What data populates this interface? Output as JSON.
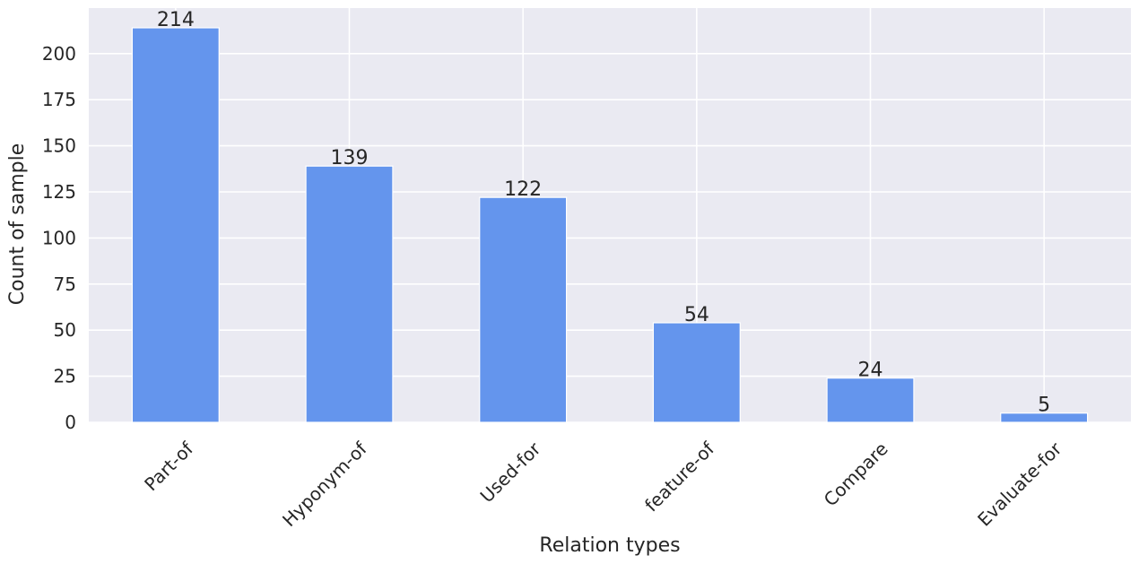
{
  "chart_data": {
    "type": "bar",
    "title": "",
    "xlabel": "Relation types",
    "ylabel": "Count of sample",
    "categories": [
      "Part-of",
      "Hyponym-of",
      "Used-for",
      "feature-of",
      "Compare",
      "Evaluate-for"
    ],
    "values": [
      214,
      139,
      122,
      54,
      24,
      5
    ],
    "data_labels": [
      "214",
      "139",
      "122",
      "54",
      "24",
      "5"
    ],
    "ylim": [
      0,
      224.7
    ],
    "yticks": [
      0,
      25,
      50,
      75,
      100,
      125,
      150,
      175,
      200
    ],
    "ytick_labels": [
      "0",
      "25",
      "50",
      "75",
      "100",
      "125",
      "150",
      "175",
      "200"
    ],
    "grid": true,
    "legend": "none",
    "colors": {
      "bar": "#6495ED",
      "plot_background": "#EAEAF2",
      "grid": "#FFFFFF",
      "text": "#262626"
    }
  }
}
